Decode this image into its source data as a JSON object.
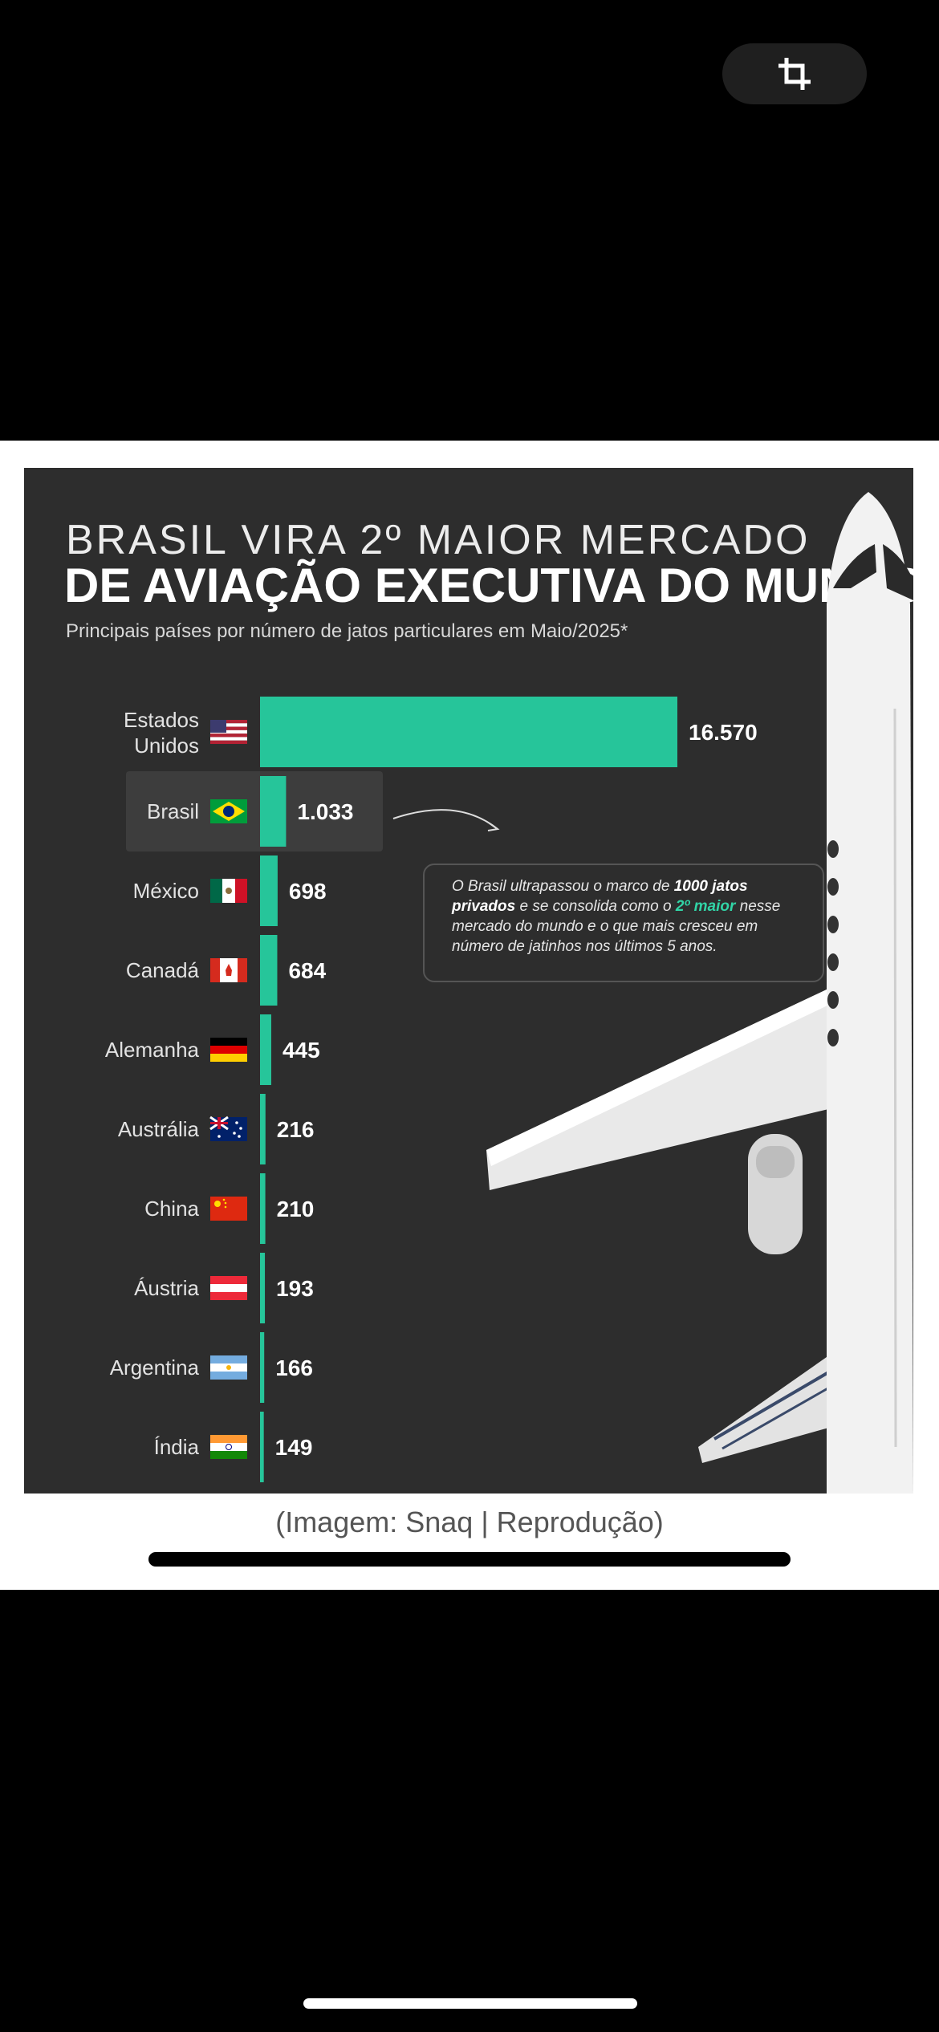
{
  "caption": "(Imagem: Snaq | Reprodução)",
  "title_line1": "BRASIL VIRA 2º MAIOR MERCADO",
  "title_line2": "DE AVIAÇÃO EXECUTIVA DO MUNDO",
  "subtitle": "Principais países por número de jatos particulares em Maio/2025*",
  "annotation": {
    "p1": "O Brasil ultrapassou o marco de ",
    "b1": "1000",
    "p2": " ",
    "b2": "jatos privados",
    "p3": " e se consolida como o ",
    "hl": "2º maior",
    "p4": " nesse mercado do mundo e o que mais cresceu em número de jatinhos nos últimos 5 anos."
  },
  "colors": {
    "bar": "#26c59a",
    "background": "#2d2d2d",
    "highlight_row": "#3d3d3d"
  },
  "chart_data": {
    "type": "bar",
    "orientation": "horizontal",
    "highlighted": "Brasil",
    "categories": [
      {
        "label": [
          "Estados",
          "Unidos"
        ],
        "flag": "usa-flag"
      },
      {
        "label": [
          "Brasil"
        ],
        "flag": "brazil-flag"
      },
      {
        "label": [
          "México"
        ],
        "flag": "mexico-flag"
      },
      {
        "label": [
          "Canadá"
        ],
        "flag": "canada-flag"
      },
      {
        "label": [
          "Alemanha"
        ],
        "flag": "germany-flag"
      },
      {
        "label": [
          "Austrália"
        ],
        "flag": "australia-flag"
      },
      {
        "label": [
          "China"
        ],
        "flag": "china-flag"
      },
      {
        "label": [
          "Áustria"
        ],
        "flag": "austria-flag"
      },
      {
        "label": [
          "Argentina"
        ],
        "flag": "argentina-flag"
      },
      {
        "label": [
          "Índia"
        ],
        "flag": "india-flag"
      }
    ],
    "values": [
      16570,
      1033,
      698,
      684,
      445,
      216,
      210,
      193,
      166,
      149
    ],
    "value_labels": [
      "16.570",
      "1.033",
      "698",
      "684",
      "445",
      "216",
      "210",
      "193",
      "166",
      "149"
    ]
  }
}
